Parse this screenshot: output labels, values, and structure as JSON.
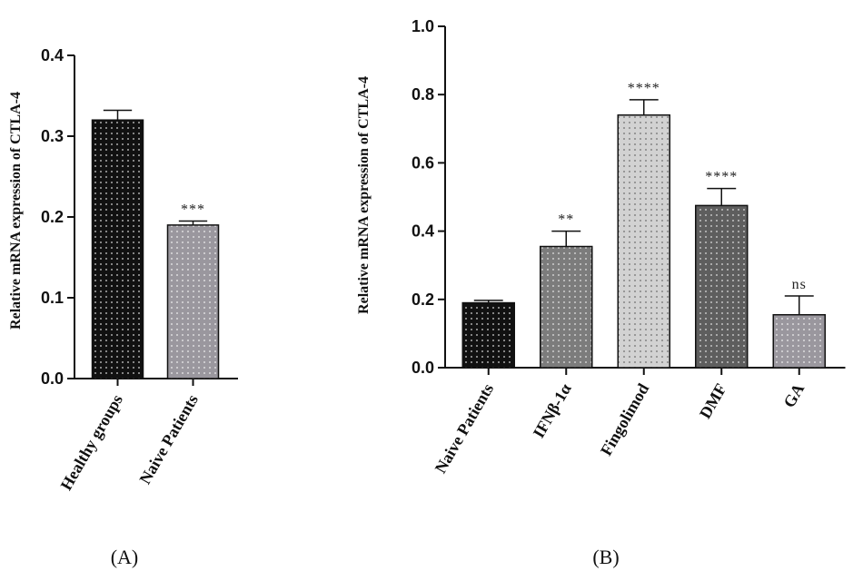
{
  "chart_data": [
    {
      "type": "bar",
      "panel_label": "(A)",
      "ylabel": "Relative mRNA expression of CTLA-4",
      "ylim": [
        0,
        0.4
      ],
      "yticks": [
        "0.0",
        "0.1",
        "0.2",
        "0.3",
        "0.4"
      ],
      "categories": [
        "Healthy groups",
        "Naive Patients"
      ],
      "values": [
        0.32,
        0.19
      ],
      "errors": [
        0.012,
        0.005
      ],
      "significance": [
        "",
        "***"
      ],
      "colors": [
        "#111111",
        "#9a979e"
      ],
      "dot_colors": [
        "#d8d8d8",
        "#f0f0f0"
      ]
    },
    {
      "type": "bar",
      "panel_label": "(B)",
      "ylabel": "Relative mRNA expression of CTLA-4",
      "ylim": [
        0,
        1.0
      ],
      "yticks": [
        "0.0",
        "0.2",
        "0.4",
        "0.6",
        "0.8",
        "1.0"
      ],
      "categories": [
        "Naive Patients",
        "IFNβ-1α",
        "Fingolimod",
        "DMF",
        "GA"
      ],
      "values": [
        0.19,
        0.355,
        0.74,
        0.475,
        0.155
      ],
      "errors": [
        0.007,
        0.045,
        0.045,
        0.05,
        0.055
      ],
      "significance": [
        "",
        "**",
        "****",
        "****",
        "ns"
      ],
      "colors": [
        "#111111",
        "#7c7c7c",
        "#d2d2d2",
        "#5e5e5e",
        "#9a979e"
      ],
      "dot_colors": [
        "#d8d8d8",
        "#e6e6e6",
        "#6d6d6d",
        "#e0e0e0",
        "#f0f0f0"
      ]
    }
  ]
}
